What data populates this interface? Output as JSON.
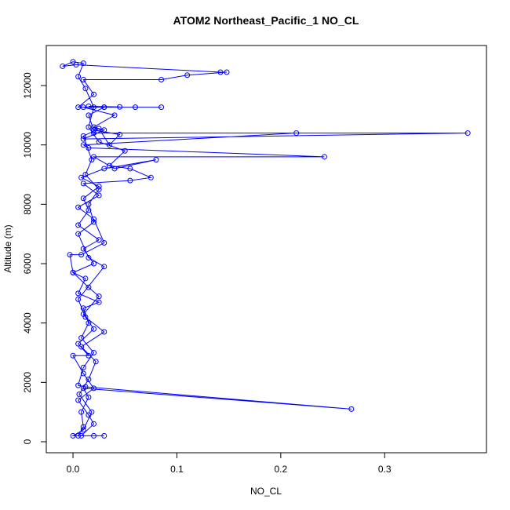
{
  "chart_data": {
    "type": "line",
    "title": "ATOM2 Northeast_Pacific_1 NO_CL",
    "x_label": "NO_CL",
    "y_label": "Altitude (m)",
    "color": "#0000ff",
    "x": [
      0.03,
      0.02,
      0.005,
      0.01,
      0.008,
      0.015,
      0.01,
      0.268,
      0.012,
      0.005,
      0.01,
      0.02,
      0.008,
      0.015,
      0.01,
      0.025,
      0.005,
      0.012,
      0.0,
      0.02,
      0.01,
      0.025,
      0.005,
      0.015,
      0.01,
      0.025,
      0.008,
      0.03,
      0.08,
      0.04,
      0.02,
      0.242,
      0.015,
      0.01,
      0.215,
      0.02,
      0.38,
      0.01,
      0.03,
      0.02,
      0.04,
      0.01,
      0.085,
      0.06,
      0.03,
      0.005,
      0.02,
      0.01,
      0.085,
      0.11,
      0.148,
      0.142,
      0.003,
      -0.01,
      0.0,
      0.01,
      0.005,
      0.012,
      0.02,
      0.015,
      0.025,
      0.05,
      0.035,
      0.055,
      0.075,
      0.055,
      0.01,
      0.025,
      0.005,
      0.02,
      0.03,
      0.008,
      -0.003,
      0.0,
      0.015,
      0.025,
      0.01,
      0.02,
      0.005,
      0.015,
      0.0,
      0.01,
      0.02,
      0.005,
      0.015,
      0.02,
      0.008,
      0.0,
      0.01,
      0.018,
      0.006,
      0.015,
      0.022,
      0.008,
      0.03,
      0.012,
      0.005,
      0.03,
      0.015,
      0.005,
      0.02,
      0.015,
      0.025,
      0.012,
      0.018,
      0.01,
      0.025,
      0.035,
      0.045,
      0.02,
      0.015,
      0.03,
      0.045,
      0.015
    ],
    "values": [
      200,
      200,
      200,
      500,
      1000,
      1500,
      1800,
      1100,
      1850,
      1900,
      2500,
      3000,
      3500,
      4000,
      4500,
      4700,
      5000,
      5500,
      5700,
      6000,
      6500,
      6800,
      7300,
      7800,
      8200,
      8600,
      8900,
      9200,
      9500,
      9200,
      9600,
      9600,
      9900,
      10000,
      10400,
      10400,
      10400,
      10200,
      10500,
      10600,
      11000,
      11270,
      11270,
      11270,
      11270,
      11270,
      11700,
      12200,
      12200,
      12350,
      12450,
      12450,
      12700,
      12650,
      12800,
      12750,
      12300,
      11900,
      11270,
      10600,
      10100,
      9800,
      9300,
      9200,
      8900,
      8800,
      8700,
      8300,
      7900,
      7500,
      6700,
      6300,
      6300,
      5700,
      5200,
      4900,
      4300,
      3800,
      3300,
      2900,
      2900,
      2300,
      1800,
      1400,
      900,
      600,
      200,
      200,
      400,
      1000,
      1600,
      2100,
      2700,
      3200,
      3700,
      4200,
      4800,
      5900,
      6200,
      7000,
      7400,
      8000,
      8500,
      9000,
      9500,
      10300,
      10550,
      10000,
      10350,
      10500,
      11000,
      11270,
      11280,
      11300
    ],
    "xlim": [
      -0.0257,
      0.398
    ],
    "xticks": [
      {
        "value": 0,
        "label": "0.0"
      },
      0.1,
      0.2,
      0.3
    ],
    "ylim": [
      -370,
      13349
    ],
    "yticks": [
      0,
      2000,
      4000,
      6000,
      8000,
      10000,
      12000
    ]
  }
}
